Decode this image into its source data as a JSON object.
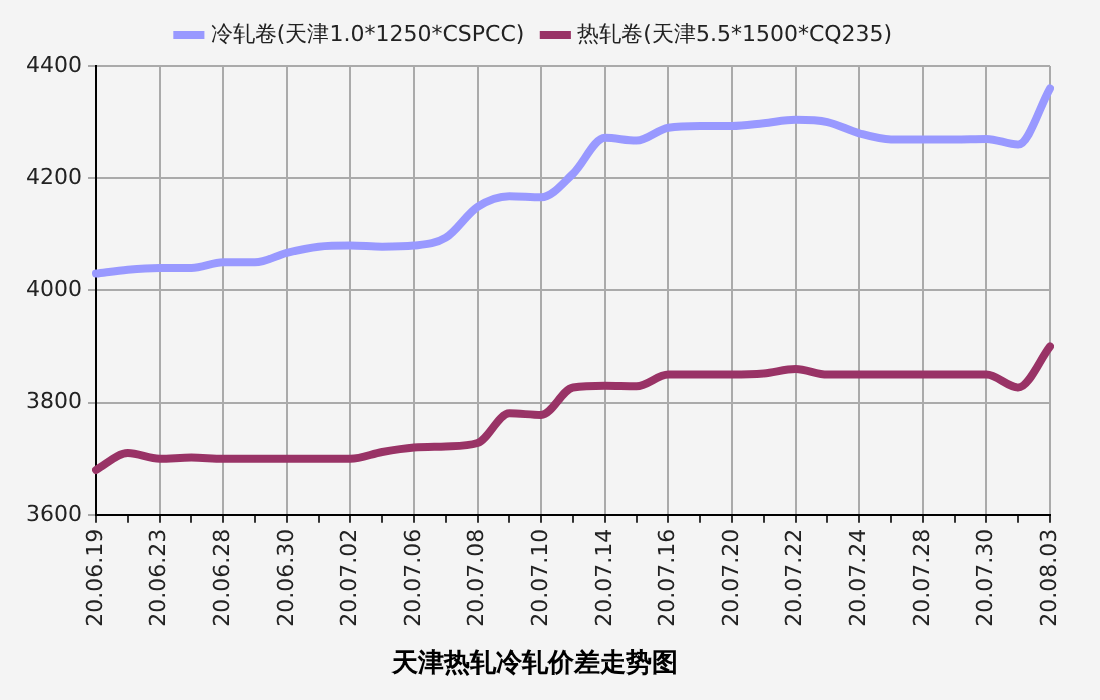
{
  "chart_data": {
    "type": "line",
    "title": "天津热轧冷轧价差走势图",
    "categories": [
      "20.06.19",
      null,
      "20.06.23",
      null,
      "20.06.28",
      null,
      "20.06.30",
      null,
      "20.07.02",
      null,
      "20.07.06",
      null,
      "20.07.08",
      null,
      "20.07.10",
      null,
      "20.07.14",
      null,
      "20.07.16",
      null,
      "20.07.20",
      null,
      "20.07.22",
      null,
      "20.07.24",
      null,
      "20.07.28",
      null,
      "20.07.30",
      null,
      "20.08.03"
    ],
    "series": [
      {
        "name": "冷轧卷(天津1.0*1250*CSPCC)",
        "color": "#9999ff",
        "values": [
          4030,
          4037,
          4040,
          4040,
          4050,
          4050,
          4067,
          4078,
          4080,
          4078,
          4080,
          4094,
          4149,
          4168,
          4166,
          4208,
          4272,
          4267,
          4290,
          4293,
          4293,
          4298,
          4304,
          4300,
          4280,
          4269,
          4269,
          4269,
          4270,
          4260,
          4360
        ]
      },
      {
        "name": "热轧卷(天津5.5*1500*CQ235)",
        "color": "#993366",
        "values": [
          3680,
          3710,
          3700,
          3702,
          3700,
          3700,
          3700,
          3700,
          3700,
          3712,
          3720,
          3722,
          3728,
          3781,
          3778,
          3827,
          3830,
          3829,
          3850,
          3850,
          3850,
          3852,
          3860,
          3850,
          3850,
          3850,
          3850,
          3850,
          3850,
          3827,
          3900
        ]
      }
    ],
    "ylim": [
      3600,
      4400
    ],
    "yticks": [
      3600,
      3800,
      4000,
      4200,
      4400
    ],
    "grid": true,
    "legend": "top",
    "marker": "none",
    "line_style": "solid"
  }
}
